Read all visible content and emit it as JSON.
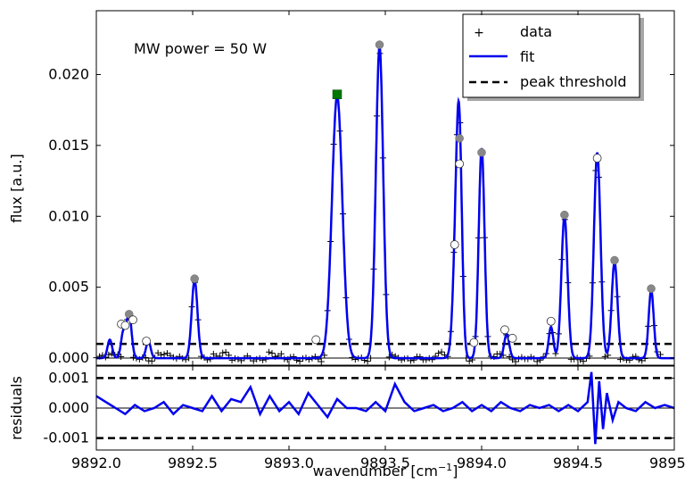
{
  "chart_data": [
    {
      "type": "line",
      "panel": "main",
      "annotation": "MW power = 50 W",
      "xlabel_prefix": "wavenumber [cm",
      "xlabel_sup": "−1",
      "xlabel_suffix": "]",
      "ylabel": "flux [a.u.]",
      "xlim": [
        9892.0,
        9895.0
      ],
      "ylim": [
        -0.0005,
        0.0245
      ],
      "xticks": [
        9892.0,
        9892.5,
        9893.0,
        9893.5,
        9894.0,
        9894.5,
        9895.0
      ],
      "xtick_labels": [
        "9892.0",
        "9892.5",
        "9893.0",
        "9893.5",
        "9894.0",
        "9894.5",
        "9895.0"
      ],
      "yticks": [
        0.0,
        0.005,
        0.01,
        0.015,
        0.02
      ],
      "ytick_labels": [
        "0.000",
        "0.005",
        "0.010",
        "0.015",
        "0.020"
      ],
      "peak_threshold": 0.001,
      "legend": {
        "position": "top-right",
        "data_label": "data",
        "fit_label": "fit",
        "threshold_label": "peak threshold"
      },
      "series": [
        {
          "name": "fit",
          "color": "#0000ee",
          "baseline": 0.0,
          "peaks": [
            {
              "center": 9892.07,
              "height": 0.0013,
              "width": 0.012
            },
            {
              "center": 9892.14,
              "height": 0.0018,
              "width": 0.012
            },
            {
              "center": 9892.17,
              "height": 0.0031,
              "width": 0.013
            },
            {
              "center": 9892.27,
              "height": 0.0012,
              "width": 0.012
            },
            {
              "center": 9892.51,
              "height": 0.0055,
              "width": 0.015
            },
            {
              "center": 9893.25,
              "height": 0.0185,
              "width": 0.027
            },
            {
              "center": 9893.47,
              "height": 0.022,
              "width": 0.019
            },
            {
              "center": 9893.87,
              "height": 0.0085,
              "width": 0.017
            },
            {
              "center": 9893.885,
              "height": 0.0117,
              "width": 0.014
            },
            {
              "center": 9894.0,
              "height": 0.0148,
              "width": 0.015
            },
            {
              "center": 9894.13,
              "height": 0.0017,
              "width": 0.013
            },
            {
              "center": 9894.36,
              "height": 0.0022,
              "width": 0.012
            },
            {
              "center": 9894.43,
              "height": 0.01,
              "width": 0.016
            },
            {
              "center": 9894.6,
              "height": 0.0145,
              "width": 0.017
            },
            {
              "center": 9894.69,
              "height": 0.0068,
              "width": 0.015
            },
            {
              "center": 9894.88,
              "height": 0.0048,
              "width": 0.013
            }
          ]
        },
        {
          "name": "data",
          "marker": "+",
          "color": "#000000",
          "x_start": 9892.0,
          "x_end": 9894.93,
          "step": 0.016
        },
        {
          "name": "peak threshold",
          "style": "dashed",
          "color": "#000000",
          "y": 0.001
        }
      ],
      "peak_markers": [
        {
          "shape": "square",
          "color": "#007700",
          "x": 9893.25,
          "y": 0.0186
        },
        {
          "shape": "circle",
          "color": "#888888",
          "x": 9892.51,
          "y": 0.0056
        },
        {
          "shape": "circle",
          "color": "#888888",
          "x": 9893.47,
          "y": 0.0221
        },
        {
          "shape": "circle",
          "color": "#888888",
          "x": 9893.885,
          "y": 0.0155
        },
        {
          "shape": "circle",
          "color": "#888888",
          "x": 9894.0,
          "y": 0.0145
        },
        {
          "shape": "circle",
          "color": "#888888",
          "x": 9894.43,
          "y": 0.0101
        },
        {
          "shape": "circle",
          "color": "#888888",
          "x": 9894.69,
          "y": 0.0069
        },
        {
          "shape": "circle",
          "color": "#888888",
          "x": 9894.88,
          "y": 0.0049
        },
        {
          "shape": "circle",
          "color": "#888888",
          "x": 9892.17,
          "y": 0.0031
        },
        {
          "shape": "open-circle",
          "color": "#ffffff",
          "x": 9892.13,
          "y": 0.0024
        },
        {
          "shape": "open-circle",
          "color": "#ffffff",
          "x": 9892.15,
          "y": 0.0023
        },
        {
          "shape": "open-circle",
          "color": "#ffffff",
          "x": 9892.19,
          "y": 0.0027
        },
        {
          "shape": "open-circle",
          "color": "#ffffff",
          "x": 9892.26,
          "y": 0.0012
        },
        {
          "shape": "open-circle",
          "color": "#ffffff",
          "x": 9893.14,
          "y": 0.0013
        },
        {
          "shape": "open-circle",
          "color": "#ffffff",
          "x": 9893.86,
          "y": 0.008
        },
        {
          "shape": "open-circle",
          "color": "#ffffff",
          "x": 9893.885,
          "y": 0.0137
        },
        {
          "shape": "open-circle",
          "color": "#ffffff",
          "x": 9893.96,
          "y": 0.0011
        },
        {
          "shape": "open-circle",
          "color": "#ffffff",
          "x": 9894.12,
          "y": 0.002
        },
        {
          "shape": "open-circle",
          "color": "#ffffff",
          "x": 9894.16,
          "y": 0.0014
        },
        {
          "shape": "open-circle",
          "color": "#ffffff",
          "x": 9894.36,
          "y": 0.0026
        },
        {
          "shape": "open-circle",
          "color": "#ffffff",
          "x": 9894.6,
          "y": 0.0141
        }
      ]
    },
    {
      "type": "line",
      "panel": "residuals",
      "ylabel": "residuals",
      "xlim": [
        9892.0,
        9895.0
      ],
      "ylim": [
        -0.0014,
        0.0014
      ],
      "yticks": [
        0.001,
        0.0,
        -0.001
      ],
      "ytick_labels": [
        "0.001",
        "0.000",
        "-0.001"
      ],
      "threshold_levels": [
        0.001,
        -0.001
      ],
      "series": [
        {
          "name": "residuals",
          "color": "#0000ee",
          "x": [
            9892.0,
            9892.05,
            9892.1,
            9892.15,
            9892.2,
            9892.25,
            9892.3,
            9892.35,
            9892.4,
            9892.45,
            9892.5,
            9892.55,
            9892.6,
            9892.65,
            9892.7,
            9892.75,
            9892.8,
            9892.85,
            9892.9,
            9892.95,
            9893.0,
            9893.05,
            9893.1,
            9893.15,
            9893.2,
            9893.25,
            9893.3,
            9893.35,
            9893.4,
            9893.45,
            9893.5,
            9893.55,
            9893.6,
            9893.65,
            9893.7,
            9893.75,
            9893.8,
            9893.85,
            9893.9,
            9893.95,
            9894.0,
            9894.05,
            9894.1,
            9894.15,
            9894.2,
            9894.25,
            9894.3,
            9894.35,
            9894.4,
            9894.45,
            9894.5,
            9894.55,
            9894.57,
            9894.59,
            9894.61,
            9894.63,
            9894.65,
            9894.68,
            9894.71,
            9894.75,
            9894.8,
            9894.85,
            9894.9,
            9894.95,
            9895.0
          ],
          "values": [
            0.0004,
            0.0002,
            0.0,
            -0.0002,
            0.0001,
            -0.0001,
            0.0,
            0.0002,
            -0.0002,
            0.0001,
            0.0,
            -0.0001,
            0.0004,
            -0.0001,
            0.0003,
            0.0002,
            0.0007,
            -0.0002,
            0.0004,
            -0.0001,
            0.0002,
            -0.0002,
            0.0005,
            0.0001,
            -0.0003,
            0.0003,
            0.0,
            0.0,
            -0.0001,
            0.0002,
            -0.0001,
            0.0008,
            0.0002,
            -0.0001,
            0.0,
            0.0001,
            -0.0001,
            0.0,
            0.0002,
            -0.0001,
            0.0001,
            -0.0001,
            0.0002,
            0.0,
            -0.0001,
            0.0001,
            0.0,
            0.0001,
            -0.0001,
            0.0001,
            -0.0001,
            0.0002,
            0.0012,
            -0.0012,
            0.0009,
            -0.0007,
            0.0005,
            -0.0004,
            0.0002,
            0.0,
            -0.0001,
            0.0002,
            0.0,
            0.0001,
            0.0
          ]
        }
      ]
    }
  ]
}
